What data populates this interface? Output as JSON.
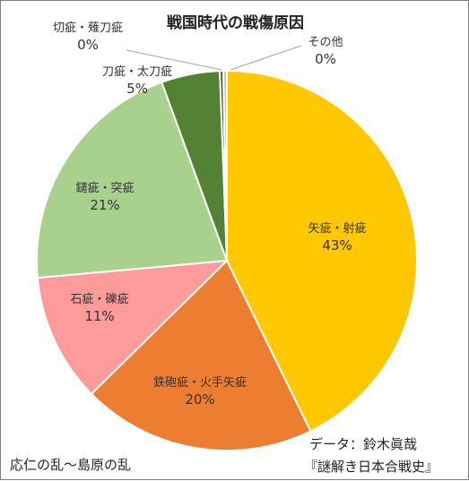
{
  "chart_data": {
    "type": "pie",
    "title": "戦国時代の戦傷原因",
    "slices": [
      {
        "label": "矢疵・射疵",
        "value": 43,
        "value_label": "43%",
        "color": "#ffc800"
      },
      {
        "label": "鉄砲疵・火手矢疵",
        "value": 20,
        "value_label": "20%",
        "color": "#ed7d31"
      },
      {
        "label": "石疵・礫疵",
        "value": 11,
        "value_label": "11%",
        "color": "#ff9b9b"
      },
      {
        "label": "鑓疵・突疵",
        "value": 21,
        "value_label": "21%",
        "color": "#a9d18e"
      },
      {
        "label": "刀疵・太刀疵",
        "value": 5,
        "value_label": "5%",
        "color": "#548235"
      },
      {
        "label": "切疵・薙刀疵",
        "value": 0.3,
        "value_label": "0%",
        "color": "#385723"
      },
      {
        "label": "その他",
        "value": 0.3,
        "value_label": "0%",
        "color": "#bfbfbf"
      }
    ],
    "legend": "none"
  },
  "notes": {
    "period": "応仁の乱～島原の乱",
    "source_line1": "データ：鈴木眞哉",
    "source_line2": "『謎解き日本合戦史』"
  }
}
